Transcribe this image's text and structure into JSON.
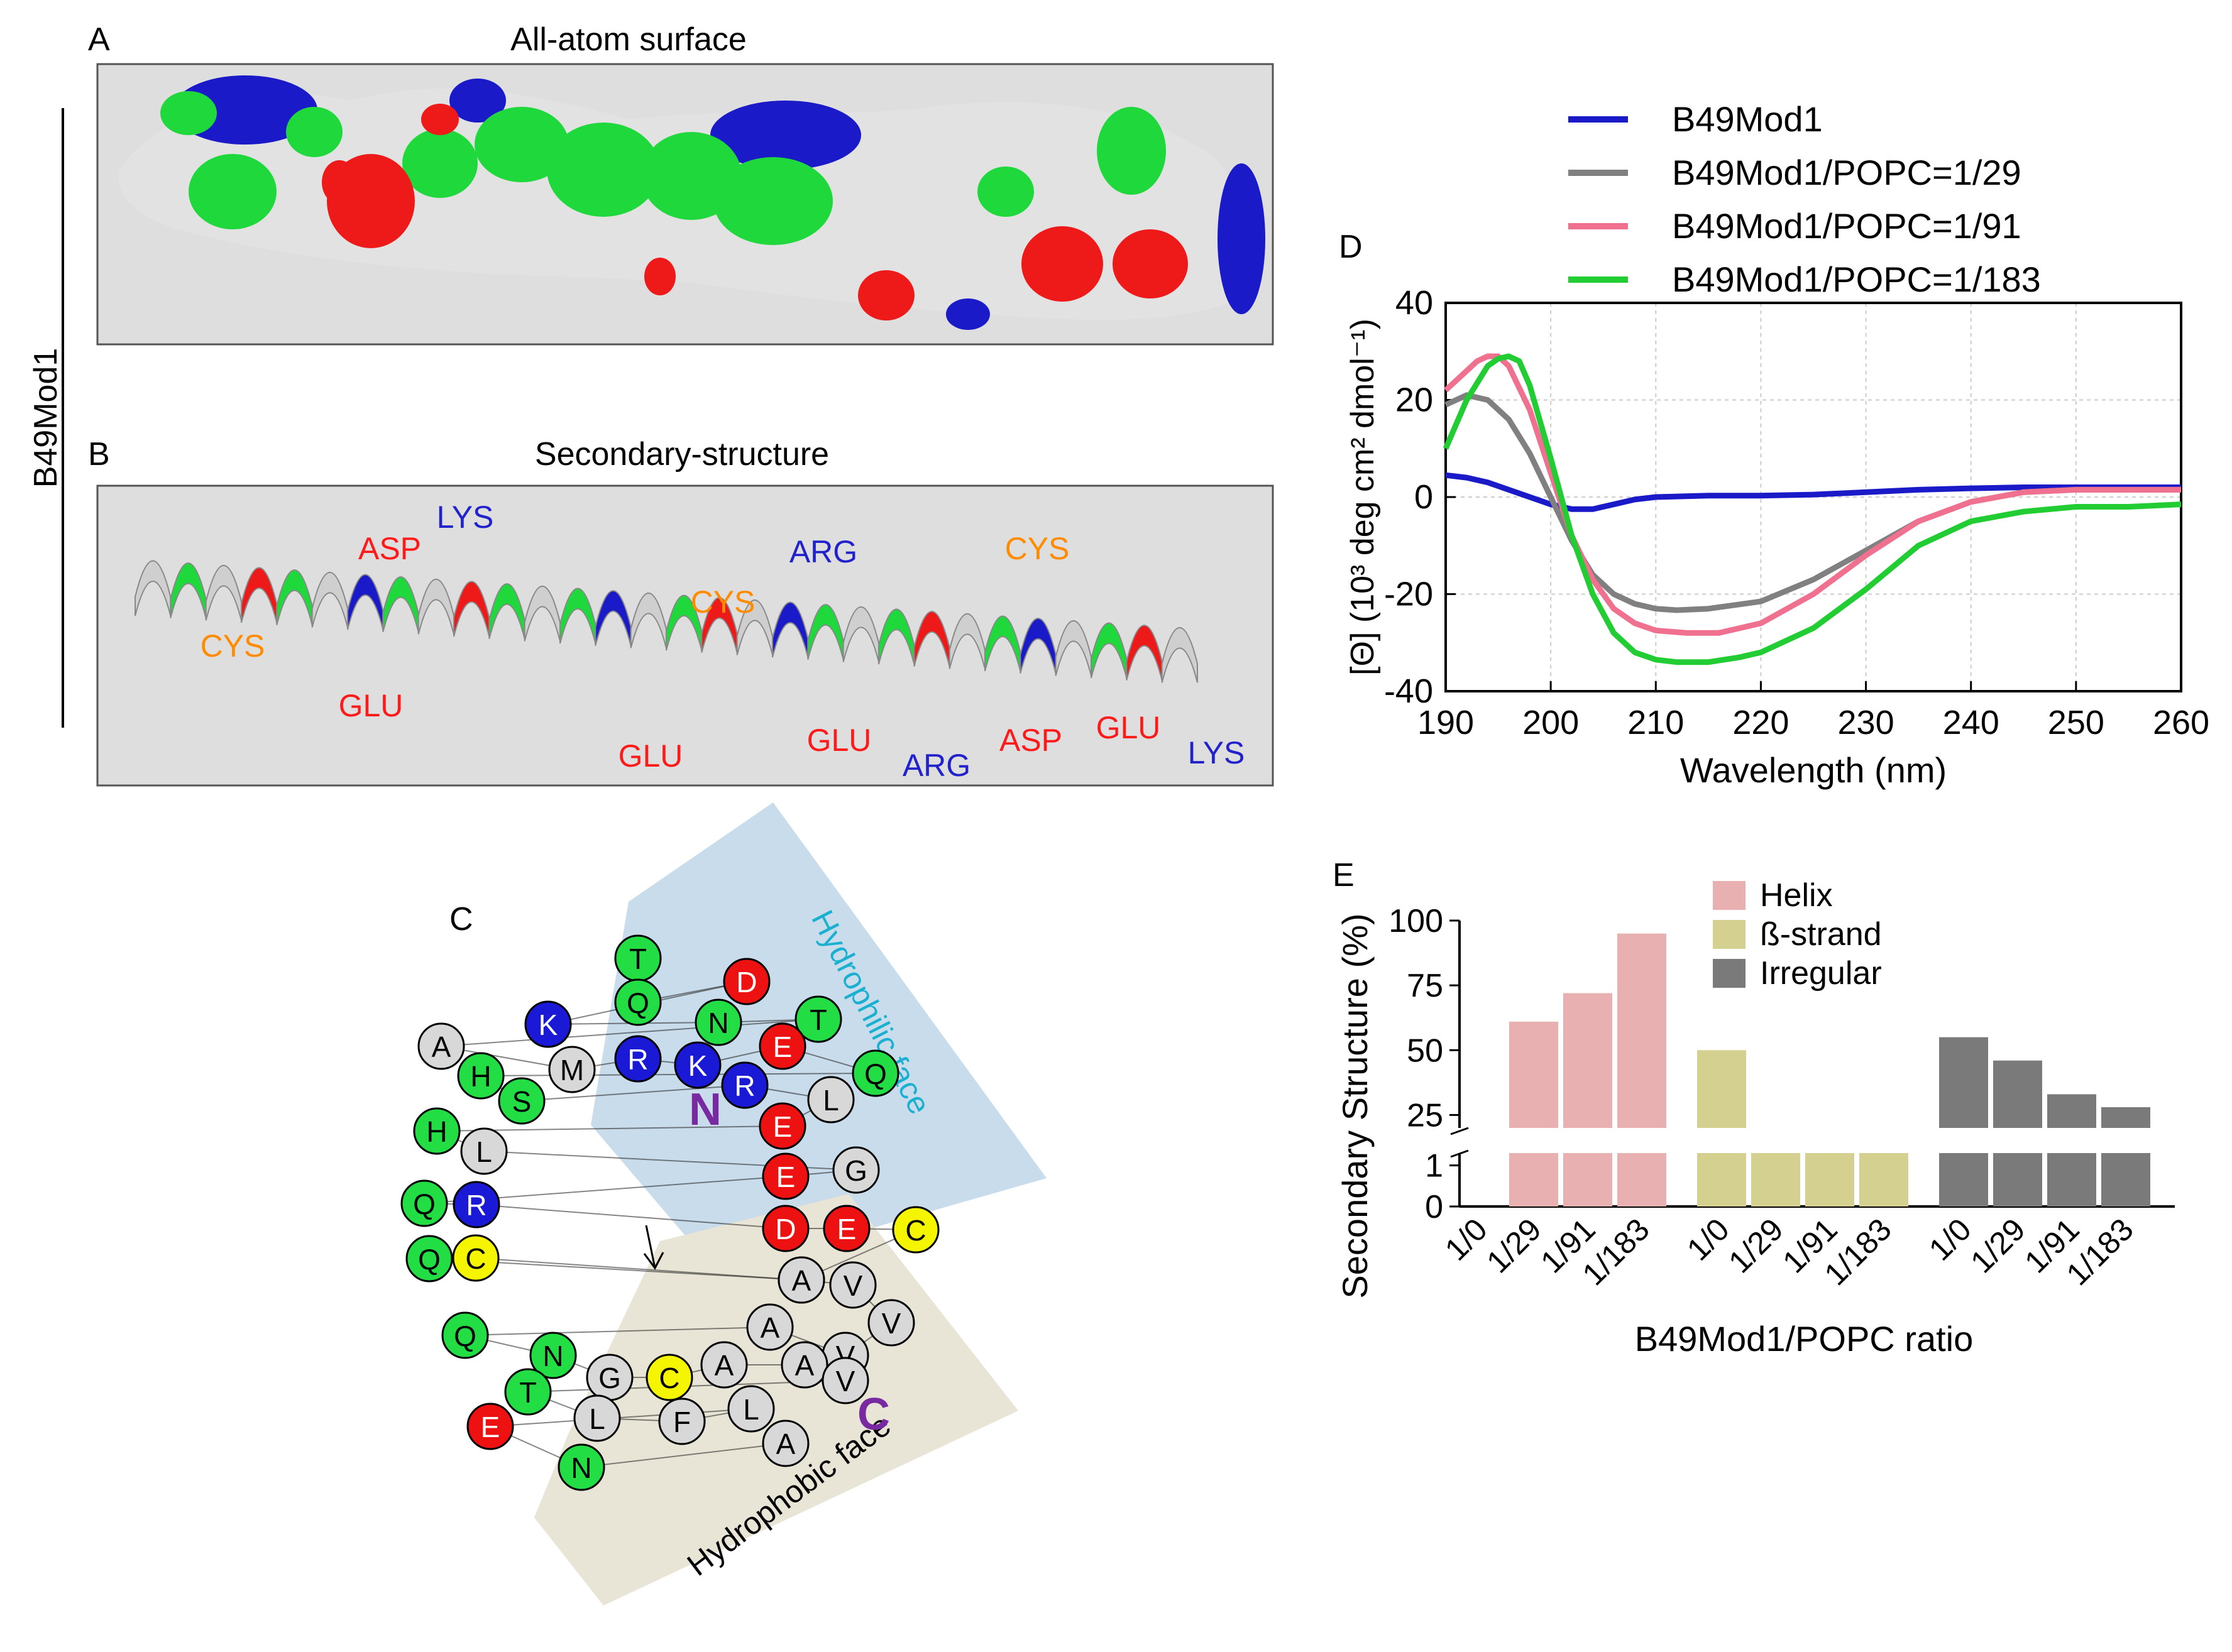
{
  "panelA": {
    "letter": "A",
    "title": "All-atom surface"
  },
  "panelB": {
    "letter": "B",
    "title": "Secondary-structure",
    "residue_labels": [
      {
        "text": "CYS",
        "color": "#ff8c00"
      },
      {
        "text": "GLU",
        "color": "#ff1a1a"
      },
      {
        "text": "ASP",
        "color": "#ff1a1a"
      },
      {
        "text": "LYS",
        "color": "#2222cc"
      },
      {
        "text": "GLU",
        "color": "#ff1a1a"
      },
      {
        "text": "CYS",
        "color": "#ff8c00"
      },
      {
        "text": "ARG",
        "color": "#2222cc"
      },
      {
        "text": "GLU",
        "color": "#ff1a1a"
      },
      {
        "text": "ARG",
        "color": "#2222cc"
      },
      {
        "text": "ASP",
        "color": "#ff1a1a"
      },
      {
        "text": "CYS",
        "color": "#ff8c00"
      },
      {
        "text": "GLU",
        "color": "#ff1a1a"
      },
      {
        "text": "LYS",
        "color": "#2222cc"
      }
    ]
  },
  "side_label": "B49Mod1",
  "panelC": {
    "letter": "C",
    "hydrophilic_label": "Hydrophilic face",
    "hydrophobic_label": "Hydrophobic face",
    "n_label": "N",
    "c_label": "C",
    "residues": [
      {
        "aa": "T",
        "type": "polar"
      },
      {
        "aa": "Q",
        "type": "polar"
      },
      {
        "aa": "D",
        "type": "acid"
      },
      {
        "aa": "K",
        "type": "base"
      },
      {
        "aa": "N",
        "type": "polar"
      },
      {
        "aa": "T",
        "type": "polar"
      },
      {
        "aa": "A",
        "type": "apolar"
      },
      {
        "aa": "M",
        "type": "apolar"
      },
      {
        "aa": "R",
        "type": "base"
      },
      {
        "aa": "K",
        "type": "base"
      },
      {
        "aa": "E",
        "type": "acid"
      },
      {
        "aa": "Q",
        "type": "polar"
      },
      {
        "aa": "H",
        "type": "polar"
      },
      {
        "aa": "S",
        "type": "polar"
      },
      {
        "aa": "R",
        "type": "base"
      },
      {
        "aa": "L",
        "type": "apolar"
      },
      {
        "aa": "E",
        "type": "acid"
      },
      {
        "aa": "H",
        "type": "polar"
      },
      {
        "aa": "L",
        "type": "apolar"
      },
      {
        "aa": "G",
        "type": "apolar"
      },
      {
        "aa": "E",
        "type": "acid"
      },
      {
        "aa": "Q",
        "type": "polar"
      },
      {
        "aa": "R",
        "type": "base"
      },
      {
        "aa": "D",
        "type": "acid"
      },
      {
        "aa": "E",
        "type": "acid"
      },
      {
        "aa": "C",
        "type": "cys"
      },
      {
        "aa": "A",
        "type": "apolar"
      },
      {
        "aa": "Q",
        "type": "polar"
      },
      {
        "aa": "C",
        "type": "cys"
      },
      {
        "aa": "A",
        "type": "apolar"
      },
      {
        "aa": "V",
        "type": "apolar"
      },
      {
        "aa": "V",
        "type": "apolar"
      },
      {
        "aa": "V",
        "type": "apolar"
      },
      {
        "aa": "A",
        "type": "apolar"
      },
      {
        "aa": "Q",
        "type": "polar"
      },
      {
        "aa": "N",
        "type": "polar"
      },
      {
        "aa": "G",
        "type": "apolar"
      },
      {
        "aa": "C",
        "type": "cys"
      },
      {
        "aa": "A",
        "type": "apolar"
      },
      {
        "aa": "A",
        "type": "apolar"
      },
      {
        "aa": "V",
        "type": "apolar"
      },
      {
        "aa": "T",
        "type": "polar"
      },
      {
        "aa": "L",
        "type": "apolar"
      },
      {
        "aa": "F",
        "type": "apolar"
      },
      {
        "aa": "L",
        "type": "apolar"
      },
      {
        "aa": "E",
        "type": "acid"
      },
      {
        "aa": "N",
        "type": "polar"
      },
      {
        "aa": "A",
        "type": "apolar"
      }
    ]
  },
  "colors": {
    "polar": "#22dd44",
    "acid": "#ee1111",
    "base": "#1a1ad6",
    "apolar": "#d8d8d8",
    "cys": "#f5f500",
    "terminus": "#7a2aa0",
    "hydrophilic_text": "#1ab0d0"
  },
  "chart_data": [
    {
      "panel": "D",
      "type": "line",
      "xlabel": "Wavelength (nm)",
      "ylabel": "[Θ] (10³ deg cm² dmol⁻¹)",
      "xlim": [
        190,
        260
      ],
      "ylim": [
        -40,
        40
      ],
      "xticks": [
        190,
        200,
        210,
        220,
        230,
        240,
        250,
        260
      ],
      "yticks": [
        -40,
        -20,
        0,
        20,
        40
      ],
      "grid": true,
      "legend_position": "top",
      "series": [
        {
          "name": "B49Mod1",
          "color": "#1a1ac8",
          "x": [
            190,
            192,
            194,
            196,
            198,
            200,
            202,
            204,
            206,
            208,
            210,
            215,
            220,
            225,
            230,
            235,
            240,
            245,
            250,
            255,
            260
          ],
          "y": [
            4.5,
            4,
            3,
            1.5,
            0,
            -1.5,
            -2.5,
            -2.5,
            -1.5,
            -0.5,
            0,
            0.3,
            0.3,
            0.5,
            1,
            1.5,
            1.8,
            2,
            2,
            2,
            2
          ]
        },
        {
          "name": "B49Mod1/POPC=1/29",
          "color": "#808080",
          "x": [
            190,
            192,
            194,
            196,
            198,
            200,
            202,
            204,
            206,
            208,
            210,
            212,
            215,
            220,
            225,
            230,
            235,
            240,
            245,
            250,
            255,
            260
          ],
          "y": [
            19,
            21,
            20,
            16,
            9,
            0,
            -9,
            -16,
            -20,
            -22,
            -23,
            -23.3,
            -23,
            -21.5,
            -17,
            -11,
            -5,
            -1,
            1,
            1.5,
            1.5,
            1.5
          ]
        },
        {
          "name": "B49Mod1/POPC=1/91",
          "color": "#f07090",
          "x": [
            190,
            192,
            193,
            194,
            195,
            196,
            198,
            200,
            202,
            204,
            206,
            208,
            210,
            213,
            216,
            220,
            225,
            230,
            235,
            240,
            245,
            250,
            255,
            260
          ],
          "y": [
            22,
            26,
            28,
            29,
            29,
            27,
            18,
            5,
            -8,
            -17,
            -23,
            -26,
            -27.5,
            -28,
            -28,
            -26,
            -20,
            -12,
            -5,
            -1,
            1,
            1.5,
            1.5,
            1.5
          ]
        },
        {
          "name": "B49Mod1/POPC=1/183",
          "color": "#22cc33",
          "x": [
            190,
            192,
            194,
            195,
            196,
            197,
            198,
            200,
            202,
            204,
            206,
            208,
            210,
            212,
            215,
            218,
            220,
            225,
            230,
            235,
            240,
            245,
            250,
            255,
            260
          ],
          "y": [
            10,
            20,
            27,
            28.5,
            29,
            28,
            23,
            8,
            -8,
            -20,
            -28,
            -32,
            -33.5,
            -34,
            -34,
            -33,
            -32,
            -27,
            -19,
            -10,
            -5,
            -3,
            -2,
            -2,
            -1.5
          ]
        }
      ]
    },
    {
      "panel": "E",
      "type": "bar",
      "ylabel": "Secondary Structure (%)",
      "xlabel": "B49Mod1/POPC ratio",
      "yticks_upper": [
        25,
        50,
        75,
        100
      ],
      "yticks_lower": [
        0,
        1
      ],
      "broken_axis": true,
      "categories": [
        "1/0",
        "1/29",
        "1/91",
        "1/183"
      ],
      "series": [
        {
          "name": "Helix",
          "color": "#e8b0b0",
          "values": [
            0,
            61,
            72,
            95
          ]
        },
        {
          "name": "ß-strand",
          "color": "#d4d090",
          "values": [
            50,
            1,
            1,
            1
          ]
        },
        {
          "name": "Irregular",
          "color": "#7a7a7a",
          "values": [
            55,
            46,
            33,
            28
          ]
        }
      ]
    }
  ],
  "panelD": {
    "letter": "D"
  },
  "panelE": {
    "letter": "E"
  }
}
